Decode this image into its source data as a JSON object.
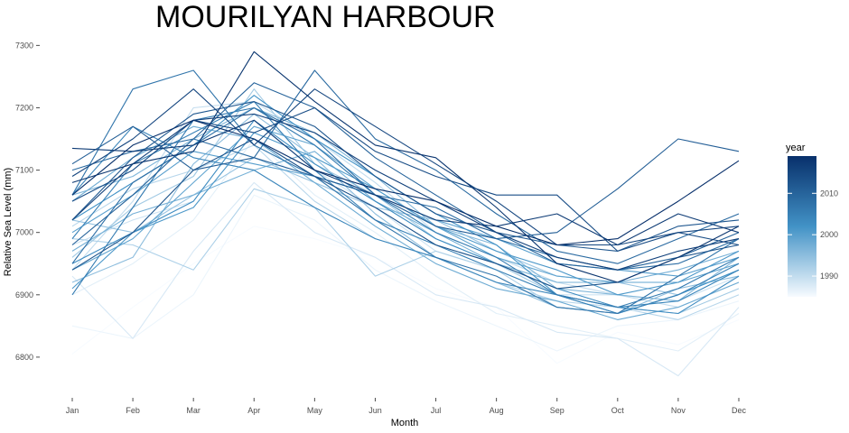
{
  "chart_data": {
    "type": "line",
    "title": "MOURILYAN HARBOUR",
    "xlabel": "Month",
    "ylabel": "Relative Sea Level (mm)",
    "categories": [
      "Jan",
      "Feb",
      "Mar",
      "Apr",
      "May",
      "Jun",
      "Jul",
      "Aug",
      "Sep",
      "Oct",
      "Nov",
      "Dec"
    ],
    "ylim": [
      6755,
      7315
    ],
    "yticks": [
      6800,
      6900,
      7000,
      7100,
      7200,
      7300
    ],
    "grid": false,
    "legend": {
      "title": "year",
      "position": "right",
      "min": 1985,
      "max": 2019,
      "ticks": [
        1990,
        2000,
        2010
      ],
      "color_low": "#f7fbff",
      "color_high": "#08306b"
    },
    "series": [
      {
        "year": 1985,
        "values": [
          6805,
          6880,
          6950,
          7010,
          6990,
          6960,
          6910,
          6880,
          6790,
          6840,
          6820,
          6860
        ]
      },
      {
        "year": 1986,
        "values": [
          6850,
          6830,
          6900,
          7060,
          7020,
          6940,
          6890,
          6850,
          6810,
          6850,
          6860,
          6890
        ]
      },
      {
        "year": 1987,
        "values": [
          6900,
          6950,
          7020,
          7150,
          7060,
          7000,
          6930,
          6870,
          6850,
          6830,
          6810,
          6870
        ]
      },
      {
        "year": 1988,
        "values": [
          6930,
          6830,
          6970,
          7080,
          7000,
          6960,
          6900,
          6880,
          6840,
          6830,
          6770,
          6880
        ]
      },
      {
        "year": 1989,
        "values": [
          6980,
          7020,
          7050,
          7180,
          7100,
          7040,
          6970,
          6940,
          6900,
          6900,
          6890,
          6930
        ]
      },
      {
        "year": 1990,
        "values": [
          6940,
          7050,
          7200,
          7210,
          7150,
          7080,
          7000,
          6960,
          6920,
          6900,
          6880,
          6920
        ]
      },
      {
        "year": 1991,
        "values": [
          7010,
          7070,
          7100,
          7140,
          7050,
          6990,
          6960,
          6920,
          6890,
          6880,
          6860,
          6900
        ]
      },
      {
        "year": 1992,
        "values": [
          6990,
          6980,
          6940,
          7070,
          7040,
          6930,
          6970,
          6940,
          6880,
          6870,
          6900,
          6940
        ]
      },
      {
        "year": 1993,
        "values": [
          6960,
          7040,
          7090,
          7230,
          7110,
          7060,
          6990,
          6950,
          6900,
          6880,
          6870,
          6910
        ]
      },
      {
        "year": 1994,
        "values": [
          7020,
          7000,
          7060,
          7120,
          7080,
          7040,
          7020,
          6970,
          6930,
          6920,
          6900,
          6940
        ]
      },
      {
        "year": 1995,
        "values": [
          6920,
          6960,
          7110,
          7190,
          7120,
          7030,
          6960,
          6920,
          6880,
          6870,
          6910,
          6930
        ]
      },
      {
        "year": 1996,
        "values": [
          7060,
          7090,
          7150,
          7200,
          7160,
          7090,
          7010,
          6980,
          6910,
          6900,
          6890,
          6960
        ]
      },
      {
        "year": 1997,
        "values": [
          6970,
          7030,
          7060,
          7100,
          7130,
          7050,
          7000,
          6950,
          6920,
          6920,
          6940,
          6970
        ]
      },
      {
        "year": 1998,
        "values": [
          7050,
          7120,
          7170,
          7150,
          7080,
          7010,
          6950,
          6910,
          6890,
          6860,
          6880,
          6920
        ]
      },
      {
        "year": 1999,
        "values": [
          6940,
          6990,
          7080,
          7170,
          7140,
          7070,
          7010,
          6960,
          6930,
          6920,
          6920,
          6950
        ]
      },
      {
        "year": 2000,
        "values": [
          7000,
          7060,
          7130,
          7110,
          7090,
          7060,
          7020,
          6990,
          6950,
          6940,
          6930,
          6960
        ]
      },
      {
        "year": 2001,
        "values": [
          6910,
          7000,
          7040,
          7160,
          7120,
          7070,
          7010,
          6970,
          6940,
          6900,
          6920,
          6970
        ]
      },
      {
        "year": 2002,
        "values": [
          7020,
          7080,
          7140,
          7220,
          7150,
          7090,
          7030,
          6980,
          6900,
          6870,
          6900,
          6940
        ]
      },
      {
        "year": 2003,
        "values": [
          6950,
          7000,
          7050,
          7180,
          7110,
          7050,
          6990,
          6950,
          6910,
          6880,
          6870,
          6930
        ]
      },
      {
        "year": 2004,
        "values": [
          7060,
          7170,
          7120,
          7100,
          7040,
          6990,
          6960,
          6920,
          6900,
          6880,
          6890,
          6940
        ]
      },
      {
        "year": 2005,
        "values": [
          6990,
          7110,
          7160,
          7210,
          7100,
          7020,
          6980,
          6940,
          6900,
          6870,
          6900,
          6950
        ]
      },
      {
        "year": 2006,
        "values": [
          6900,
          7040,
          7180,
          7200,
          7140,
          7060,
          7000,
          6960,
          6900,
          6880,
          6910,
          6960
        ]
      },
      {
        "year": 2007,
        "values": [
          7060,
          7230,
          7260,
          7140,
          7090,
          7020,
          6960,
          6930,
          6880,
          6870,
          6930,
          6990
        ]
      },
      {
        "year": 2008,
        "values": [
          6950,
          7080,
          7140,
          7200,
          7150,
          7060,
          7040,
          6990,
          6960,
          6940,
          6950,
          6990
        ]
      },
      {
        "year": 2009,
        "values": [
          7100,
          7130,
          7150,
          7120,
          7260,
          7150,
          7100,
          7030,
          6970,
          6950,
          6990,
          7030
        ]
      },
      {
        "year": 2010,
        "values": [
          6980,
          7060,
          7150,
          7240,
          7200,
          7120,
          7060,
          7000,
          6950,
          6940,
          6960,
          7000
        ]
      },
      {
        "year": 2011,
        "values": [
          7110,
          7170,
          7100,
          7120,
          7090,
          7060,
          7010,
          6990,
          7000,
          7070,
          7150,
          7130
        ]
      },
      {
        "year": 2012,
        "values": [
          7020,
          7120,
          7190,
          7210,
          7170,
          7090,
          7030,
          7000,
          6980,
          6970,
          7010,
          7020
        ]
      },
      {
        "year": 2013,
        "values": [
          6940,
          7000,
          7100,
          7150,
          7090,
          7040,
          6980,
          6950,
          6910,
          6920,
          6960,
          6980
        ]
      },
      {
        "year": 2014,
        "values": [
          7050,
          7100,
          7180,
          7160,
          7200,
          7130,
          7090,
          7060,
          7060,
          6970,
          7000,
          6980
        ]
      },
      {
        "year": 2015,
        "values": [
          7090,
          7150,
          7230,
          7140,
          7230,
          7170,
          7110,
          7050,
          6980,
          6980,
          7000,
          7010
        ]
      },
      {
        "year": 2016,
        "values": [
          7020,
          7110,
          7180,
          7190,
          7160,
          7100,
          7050,
          7000,
          6960,
          6940,
          6970,
          6990
        ]
      },
      {
        "year": 2017,
        "values": [
          7135,
          7130,
          7140,
          7180,
          7100,
          7060,
          7020,
          7010,
          7030,
          6980,
          7030,
          7000
        ]
      },
      {
        "year": 2018,
        "values": [
          7080,
          7110,
          7130,
          7290,
          7210,
          7140,
          7120,
          7040,
          6950,
          6920,
          6960,
          7010
        ]
      },
      {
        "year": 2019,
        "values": [
          7060,
          7140,
          7180,
          7150,
          7100,
          7070,
          7050,
          7010,
          6980,
          6990,
          7050,
          7115
        ]
      }
    ]
  }
}
